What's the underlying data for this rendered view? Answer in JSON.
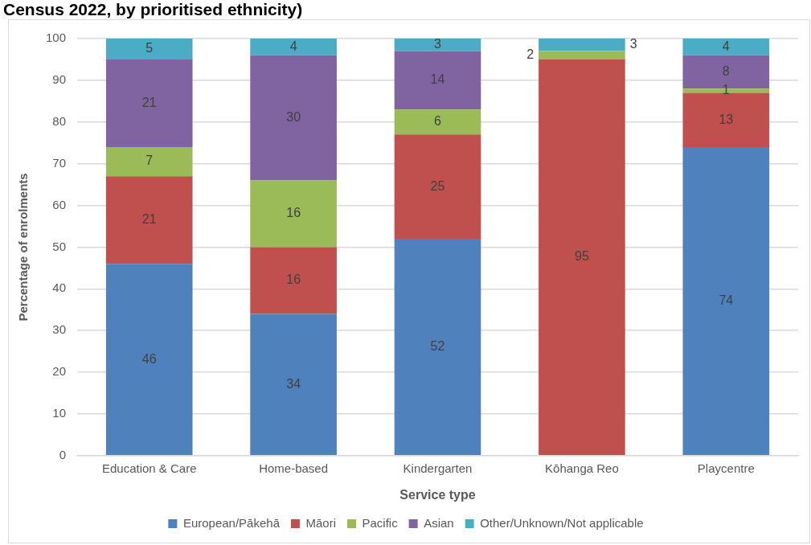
{
  "chart_data": {
    "type": "bar",
    "title": "Census 2022, by prioritised ethnicity)",
    "xlabel": "Service type",
    "ylabel": "Percentage of enrolments",
    "categories": [
      "Education & Care",
      "Home-based",
      "Kindergarten",
      "Kōhanga Reo",
      "Playcentre"
    ],
    "stacked": true,
    "ylim": [
      0,
      100
    ],
    "yticks": [
      0,
      10,
      20,
      30,
      40,
      50,
      60,
      70,
      80,
      90,
      100
    ],
    "grid": "y",
    "legend": "bottom",
    "series": [
      {
        "name": "European/Pākehā",
        "color": "#4f81bd",
        "values": [
          46,
          34,
          52,
          0,
          74
        ],
        "value_labels": [
          "46",
          "34",
          "52",
          null,
          "74"
        ]
      },
      {
        "name": "Māori",
        "color": "#c0504d",
        "values": [
          21,
          16,
          25,
          95,
          13
        ],
        "value_labels": [
          "21",
          "16",
          "25",
          "95",
          "13"
        ]
      },
      {
        "name": "Pacific",
        "color": "#9bbb59",
        "values": [
          7,
          16,
          6,
          2,
          1
        ],
        "value_labels": [
          "7",
          "16",
          "6",
          "2",
          "1"
        ]
      },
      {
        "name": "Asian",
        "color": "#8064a2",
        "values": [
          21,
          30,
          14,
          0,
          8
        ],
        "value_labels": [
          "21",
          "30",
          "14",
          null,
          "8"
        ]
      },
      {
        "name": "Other/Unknown/Not applicable",
        "color": "#4bacc6",
        "values": [
          5,
          4,
          3,
          3,
          4
        ],
        "value_labels": [
          "5",
          "4",
          "3",
          "3",
          "4"
        ]
      }
    ]
  }
}
